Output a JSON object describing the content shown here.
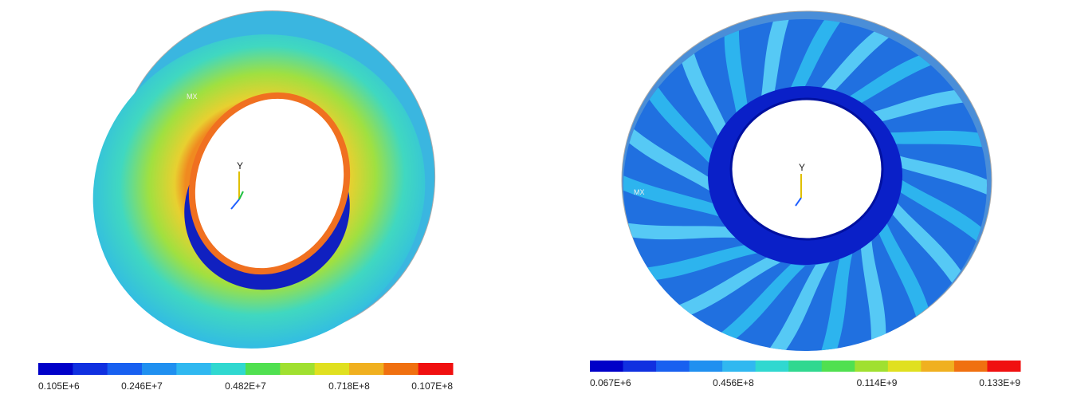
{
  "panels": [
    {
      "marker": "MX",
      "triad_axis": "Y",
      "colorbar_labels": [
        "0.105E+6",
        "0.246E+7",
        "0.482E+7",
        "0.718E+8",
        "0.107E+8"
      ]
    },
    {
      "marker": "MX",
      "triad_axis": "Y",
      "colorbar_labels": [
        "0.067E+6",
        "0.456E+8",
        "0.114E+9",
        "0.133E+9"
      ]
    }
  ]
}
